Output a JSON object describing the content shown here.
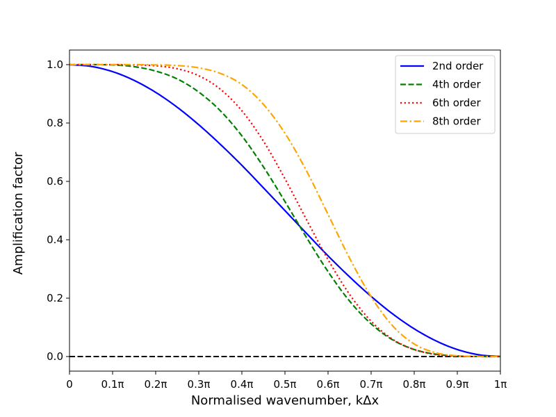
{
  "chart_data": {
    "type": "line",
    "title": "",
    "xlabel": "Normalised wavenumber, kΔx",
    "ylabel": "Amplification factor",
    "xlim": [
      0,
      1
    ],
    "ylim": [
      -0.05,
      1.05
    ],
    "x_unit": "π",
    "grid": false,
    "legend_position": "top-right",
    "xticks": [
      0,
      0.1,
      0.2,
      0.3,
      0.4,
      0.5,
      0.6,
      0.7,
      0.8,
      0.9,
      1.0
    ],
    "xtick_labels": [
      "0",
      "0.1π",
      "0.2π",
      "0.3π",
      "0.4π",
      "0.5π",
      "0.6π",
      "0.7π",
      "0.8π",
      "0.9π",
      "1π"
    ],
    "yticks": [
      0.0,
      0.2,
      0.4,
      0.6,
      0.8,
      1.0
    ],
    "ytick_labels": [
      "0.0",
      "0.2",
      "0.4",
      "0.6",
      "0.8",
      "1.0"
    ],
    "x": [
      0,
      0.05,
      0.1,
      0.15,
      0.2,
      0.25,
      0.3,
      0.35,
      0.4,
      0.45,
      0.5,
      0.55,
      0.6,
      0.65,
      0.7,
      0.75,
      0.8,
      0.85,
      0.9,
      0.95,
      1.0
    ],
    "series": [
      {
        "name": "2nd order",
        "color": "#0000ff",
        "style": "solid",
        "values": [
          1.0,
          0.994,
          0.976,
          0.946,
          0.905,
          0.854,
          0.794,
          0.727,
          0.655,
          0.578,
          0.5,
          0.422,
          0.345,
          0.273,
          0.206,
          0.146,
          0.095,
          0.054,
          0.024,
          0.006,
          0.0
        ]
      },
      {
        "name": "4th order",
        "color": "#008000",
        "style": "dashed",
        "values": [
          1.0,
          1.0,
          0.999,
          0.993,
          0.978,
          0.951,
          0.906,
          0.842,
          0.756,
          0.65,
          0.531,
          0.408,
          0.291,
          0.19,
          0.112,
          0.057,
          0.024,
          0.008,
          0.0017,
          0.0001,
          0.0
        ]
      },
      {
        "name": "6th order",
        "color": "#ff0000",
        "style": "dotted",
        "values": [
          1.0,
          1.0,
          1.0,
          0.999,
          0.996,
          0.986,
          0.962,
          0.916,
          0.842,
          0.738,
          0.609,
          0.469,
          0.332,
          0.213,
          0.121,
          0.059,
          0.024,
          0.007,
          0.0016,
          0.0001,
          0.0
        ]
      },
      {
        "name": "8th order",
        "color": "#ffa500",
        "style": "dashdot",
        "values": [
          1.0,
          1.0,
          1.0,
          1.0,
          0.999,
          0.997,
          0.989,
          0.97,
          0.932,
          0.864,
          0.765,
          0.636,
          0.487,
          0.337,
          0.205,
          0.105,
          0.043,
          0.013,
          0.0025,
          0.0002,
          0.0
        ]
      }
    ],
    "reference_line": {
      "y": 0.0,
      "color": "#000000",
      "style": "dashed"
    }
  }
}
